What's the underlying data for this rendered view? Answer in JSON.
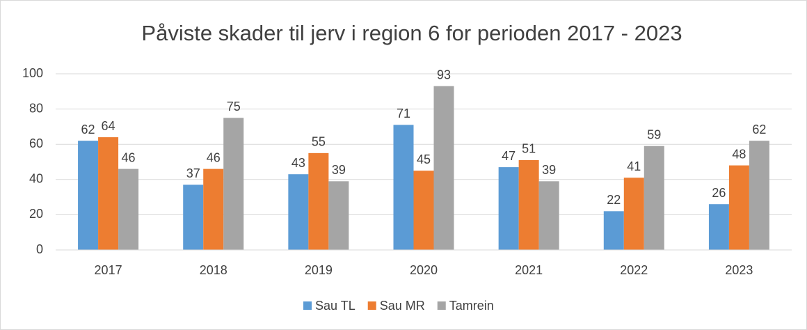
{
  "chart_data": {
    "type": "bar",
    "title": "Påviste skader til jerv i region 6 for perioden 2017 - 2023",
    "categories": [
      "2017",
      "2018",
      "2019",
      "2020",
      "2021",
      "2022",
      "2023"
    ],
    "series": [
      {
        "name": "Sau TL",
        "color": "#5b9bd5",
        "values": [
          62,
          37,
          43,
          71,
          47,
          22,
          26
        ]
      },
      {
        "name": "Sau MR",
        "color": "#ed7d31",
        "values": [
          64,
          46,
          55,
          45,
          51,
          41,
          48
        ]
      },
      {
        "name": "Tamrein",
        "color": "#a5a5a5",
        "values": [
          46,
          75,
          39,
          93,
          39,
          59,
          62
        ]
      }
    ],
    "ylim": [
      0,
      100
    ],
    "yticks": [
      0,
      20,
      40,
      60,
      80,
      100
    ],
    "grid": true,
    "legend": "bottom"
  }
}
